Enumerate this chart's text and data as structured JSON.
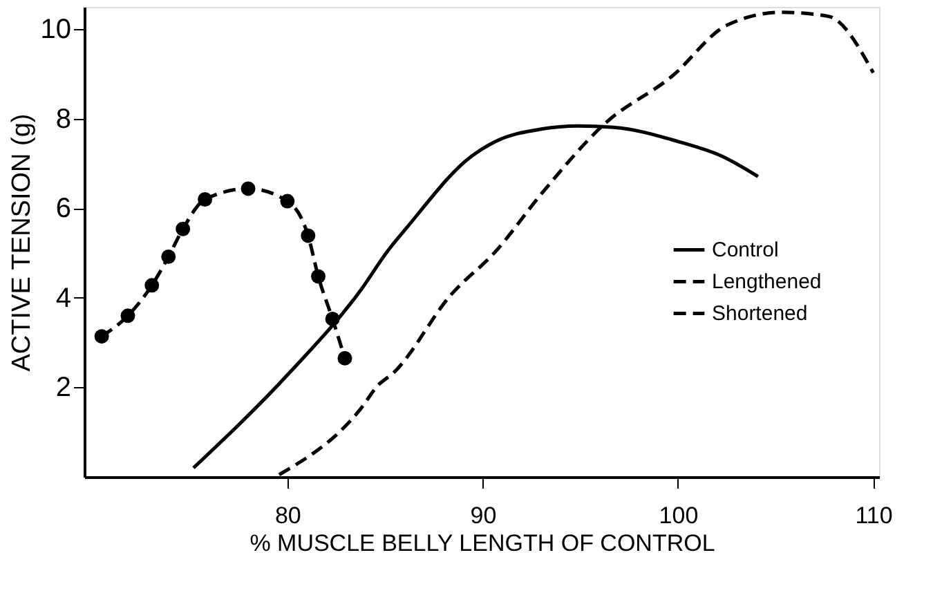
{
  "chart_data": {
    "type": "line",
    "xlabel": "% MUSCLE BELLY LENGTH OF CONTROL",
    "ylabel": "ACTIVE  TENSION (g)",
    "xlim": [
      69.6,
      110.3
    ],
    "xticks": [
      80,
      90,
      100,
      110
    ],
    "ylim": [
      0,
      10.5
    ],
    "yticks": [
      2,
      4,
      6,
      8,
      10
    ],
    "grid": false,
    "legend": "right",
    "series": [
      {
        "name": "Control",
        "color": "#000000",
        "line_style": "solid",
        "marker": "none",
        "x": [
          75.19,
          80.05,
          83.75,
          85.14,
          86.06,
          89.42,
          90.69,
          93.0,
          94.86,
          96.71,
          99.95,
          102.27,
          104.1
        ],
        "values": [
          0.2,
          2.3,
          4.17,
          5.05,
          5.54,
          7.16,
          7.5,
          7.77,
          7.84,
          7.81,
          7.5,
          7.16,
          6.71
        ]
      },
      {
        "name": "Lengthened",
        "color": "#000000",
        "line_style": "dashed",
        "marker": "none",
        "x": [
          79.58,
          83.75,
          84.67,
          85.37,
          88.38,
          90.69,
          93.0,
          96.25,
          99.72,
          102.5,
          105.3,
          107.7,
          110.0
        ],
        "values": [
          0.05,
          1.52,
          2.06,
          2.3,
          4.07,
          5.05,
          6.32,
          7.89,
          8.96,
          10.09,
          10.38,
          10.29,
          9.03
        ]
      },
      {
        "name": "Shortened",
        "color": "#000000",
        "line_style": "dashed",
        "marker": "circle",
        "x": [
          70.49,
          71.83,
          73.06,
          73.91,
          74.65,
          75.78,
          77.99,
          80.0,
          81.06,
          81.58,
          82.31,
          82.94
        ],
        "values": [
          3.14,
          3.6,
          4.28,
          4.92,
          5.54,
          6.2,
          6.44,
          6.16,
          5.39,
          4.48,
          3.53,
          2.65
        ]
      }
    ]
  }
}
